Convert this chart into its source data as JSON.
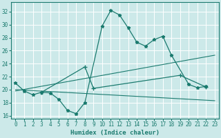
{
  "xlabel": "Humidex (Indice chaleur)",
  "xlim": [
    -0.5,
    23.5
  ],
  "ylim": [
    15.5,
    33.5
  ],
  "yticks": [
    16,
    18,
    20,
    22,
    24,
    26,
    28,
    30,
    32
  ],
  "xticks": [
    0,
    1,
    2,
    3,
    4,
    5,
    6,
    7,
    8,
    9,
    10,
    11,
    12,
    13,
    14,
    15,
    16,
    17,
    18,
    19,
    20,
    21,
    22,
    23
  ],
  "bg_color": "#cce9e9",
  "grid_color": "#ffffff",
  "line_color": "#1a7a6e",
  "curve1_x": [
    0,
    1,
    2,
    3,
    4,
    5,
    6,
    7,
    8,
    10,
    11,
    12,
    13,
    14,
    15,
    16,
    17,
    18,
    20,
    21,
    22
  ],
  "curve1_y": [
    21.0,
    19.8,
    19.2,
    19.6,
    19.5,
    18.5,
    16.8,
    16.3,
    18.0,
    29.8,
    32.2,
    31.5,
    29.5,
    27.3,
    26.7,
    27.7,
    28.2,
    25.3,
    20.8,
    20.3,
    20.5
  ],
  "curve2_x": [
    3,
    8,
    9,
    19,
    22
  ],
  "curve2_y": [
    19.6,
    23.5,
    20.2,
    22.2,
    20.4
  ],
  "regline1_x": [
    0,
    23
  ],
  "regline1_y": [
    19.8,
    25.3
  ],
  "regline2_x": [
    0,
    23
  ],
  "regline2_y": [
    20.0,
    18.3
  ]
}
